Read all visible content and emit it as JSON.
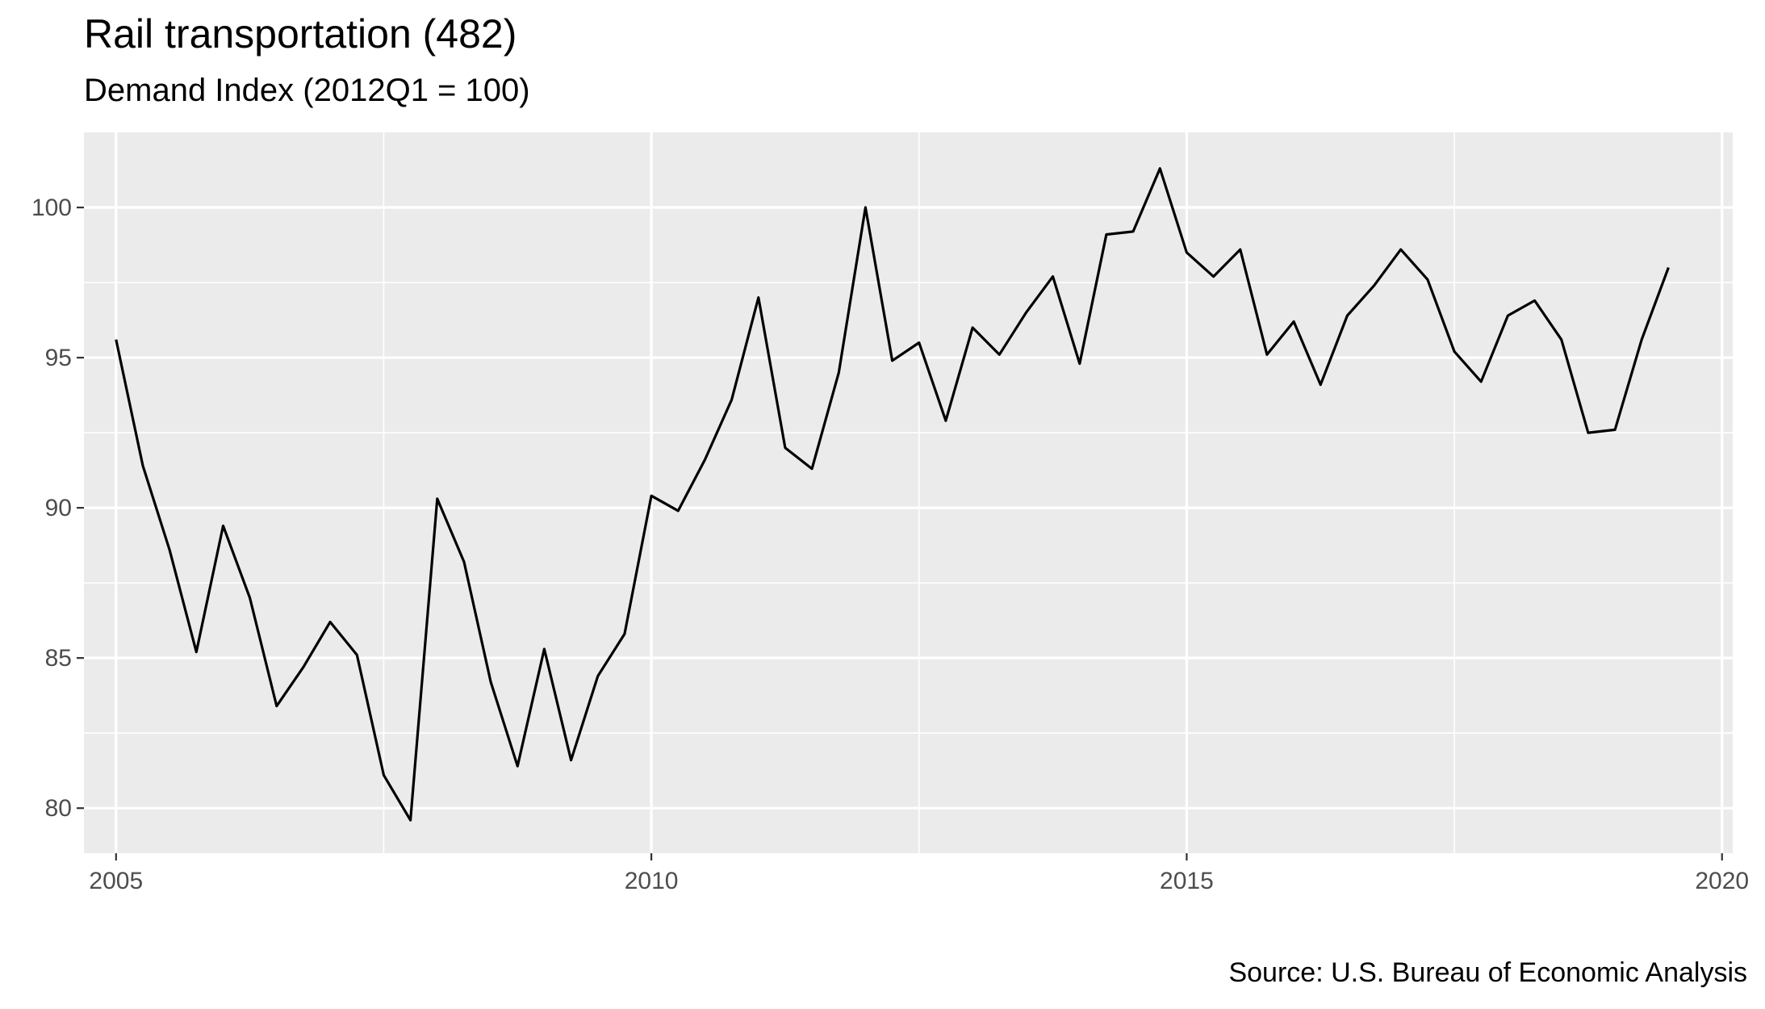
{
  "chart_data": {
    "type": "line",
    "title": "Rail transportation (482)",
    "subtitle": "Demand Index (2012Q1 = 100)",
    "caption": "Source: U.S. Bureau of Economic Analysis",
    "xlabel": "",
    "ylabel": "",
    "xlim": [
      2004.7,
      2020.1
    ],
    "ylim": [
      78.5,
      102.5
    ],
    "x_ticks": [
      2005,
      2010,
      2015,
      2020
    ],
    "x_tick_labels": [
      "2005",
      "2010",
      "2015",
      "2020"
    ],
    "y_ticks": [
      80,
      85,
      90,
      95,
      100
    ],
    "y_tick_labels": [
      "80",
      "85",
      "90",
      "95",
      "100"
    ],
    "grid": true,
    "legend": "none",
    "colors": {
      "panel_bg": "#ebebeb",
      "grid": "#ffffff",
      "line": "#000000",
      "tick_text": "#4d4d4d"
    },
    "series": [
      {
        "x": [
          2005.0,
          2005.25,
          2005.5,
          2005.75,
          2006.0,
          2006.25,
          2006.5,
          2006.75,
          2007.0,
          2007.25,
          2007.5,
          2007.75,
          2008.0,
          2008.25,
          2008.5,
          2008.75,
          2009.0,
          2009.25,
          2009.5,
          2009.75,
          2010.0,
          2010.25,
          2010.5,
          2010.75,
          2011.0,
          2011.25,
          2011.5,
          2011.75,
          2012.0,
          2012.25,
          2012.5,
          2012.75,
          2013.0,
          2013.25,
          2013.5,
          2013.75,
          2014.0,
          2014.25,
          2014.5,
          2014.75,
          2015.0,
          2015.25,
          2015.5,
          2015.75,
          2016.0,
          2016.25,
          2016.5,
          2016.75,
          2017.0,
          2017.25,
          2017.5,
          2017.75,
          2018.0,
          2018.25,
          2018.5,
          2018.75,
          2019.0,
          2019.25,
          2019.5
        ],
        "values": [
          95.6,
          91.4,
          88.6,
          85.2,
          89.4,
          87.0,
          83.4,
          84.7,
          86.2,
          85.1,
          81.1,
          79.6,
          90.3,
          88.2,
          84.2,
          81.4,
          85.3,
          81.6,
          84.4,
          85.8,
          90.4,
          89.9,
          91.6,
          93.6,
          97.0,
          92.0,
          91.3,
          94.5,
          100.0,
          94.9,
          95.5,
          92.9,
          96.0,
          95.1,
          96.5,
          97.7,
          94.8,
          99.1,
          99.2,
          101.3,
          98.5,
          97.7,
          98.6,
          95.1,
          96.2,
          94.1,
          96.4,
          97.4,
          98.6,
          97.6,
          95.2,
          94.2,
          96.4,
          96.9,
          95.6,
          92.5,
          92.6,
          95.6,
          98.0
        ]
      }
    ]
  }
}
